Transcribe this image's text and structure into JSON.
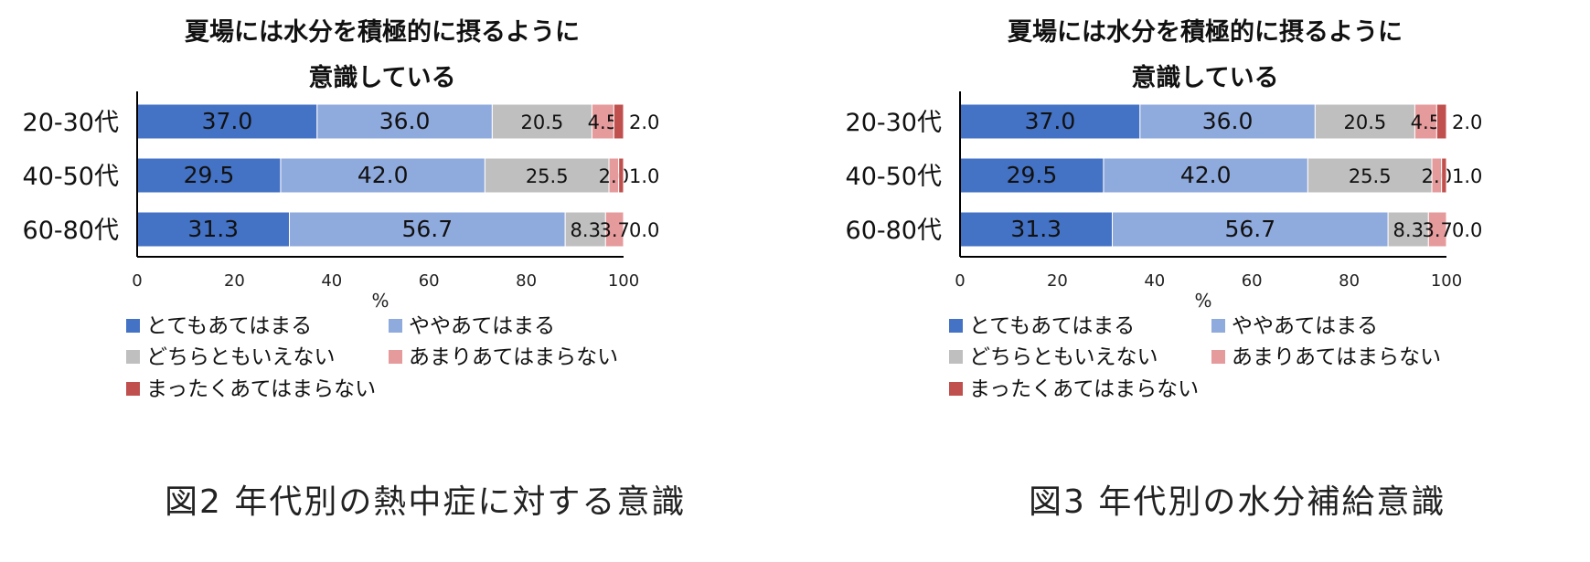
{
  "chart_data": [
    {
      "type": "bar",
      "orientation": "horizontal",
      "stacked": true,
      "title": "夏場には水分を積極的に摂るように意識している",
      "title_lines": [
        "夏場には水分を積極的に摂るように",
        "意識している"
      ],
      "categories": [
        "20-30代",
        "40-50代",
        "60-80代"
      ],
      "series": [
        {
          "name": "とてもあてはまる",
          "values": [
            37.0,
            29.5,
            31.3
          ],
          "labels": [
            "37.0",
            "29.5",
            "31.3"
          ]
        },
        {
          "name": "ややあてはまる",
          "values": [
            36.0,
            42.0,
            56.7
          ],
          "labels": [
            "36.0",
            "42.0",
            "56.7"
          ]
        },
        {
          "name": "どちらともいえない",
          "values": [
            20.5,
            25.5,
            8.3
          ],
          "labels": [
            "20.5",
            "25.5",
            "8.3"
          ]
        },
        {
          "name": "あまりあてはまらない",
          "values": [
            4.5,
            2.0,
            3.7
          ],
          "labels": [
            "4.5",
            "2.0",
            "3.7"
          ]
        },
        {
          "name": "まったくあてはまらない",
          "values": [
            2.0,
            1.0,
            0.0
          ],
          "labels": [
            "2.0",
            "1.0",
            "0.0"
          ]
        }
      ],
      "xlabel": "%",
      "xlim": [
        0,
        100
      ],
      "xticks": [
        "0",
        "20",
        "40",
        "60",
        "80",
        "100"
      ],
      "colors": [
        "#4472C4",
        "#8FAADC",
        "#BFBFBF",
        "#E59A9C",
        "#C0504D"
      ],
      "legend_position": "bottom",
      "grid": false,
      "caption": "図2 年代別の熱中症に対する意識"
    },
    {
      "type": "bar",
      "orientation": "horizontal",
      "stacked": true,
      "title": "夏場には水分を積極的に摂るように意識している",
      "title_lines": [
        "夏場には水分を積極的に摂るように",
        "意識している"
      ],
      "categories": [
        "20-30代",
        "40-50代",
        "60-80代"
      ],
      "series": [
        {
          "name": "とてもあてはまる",
          "values": [
            37.0,
            29.5,
            31.3
          ],
          "labels": [
            "37.0",
            "29.5",
            "31.3"
          ]
        },
        {
          "name": "ややあてはまる",
          "values": [
            36.0,
            42.0,
            56.7
          ],
          "labels": [
            "36.0",
            "42.0",
            "56.7"
          ]
        },
        {
          "name": "どちらともいえない",
          "values": [
            20.5,
            25.5,
            8.3
          ],
          "labels": [
            "20.5",
            "25.5",
            "8.3"
          ]
        },
        {
          "name": "あまりあてはまらない",
          "values": [
            4.5,
            2.0,
            3.7
          ],
          "labels": [
            "4.5",
            "2.0",
            "3.7"
          ]
        },
        {
          "name": "まったくあてはまらない",
          "values": [
            2.0,
            1.0,
            0.0
          ],
          "labels": [
            "2.0",
            "1.0",
            "0.0"
          ]
        }
      ],
      "xlabel": "%",
      "xlim": [
        0,
        100
      ],
      "xticks": [
        "0",
        "20",
        "40",
        "60",
        "80",
        "100"
      ],
      "colors": [
        "#4472C4",
        "#8FAADC",
        "#BFBFBF",
        "#E59A9C",
        "#C0504D"
      ],
      "legend_position": "bottom",
      "grid": false,
      "caption": "図3 年代別の水分補給意識"
    }
  ]
}
